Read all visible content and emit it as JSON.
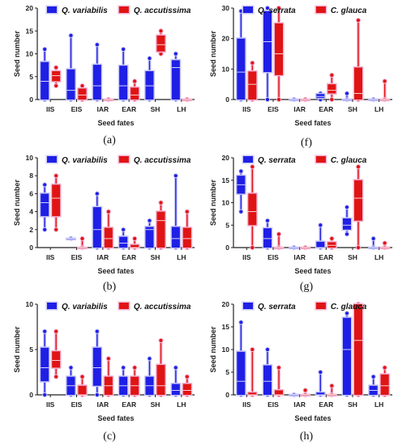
{
  "chart_data": [
    {
      "id": "a",
      "panel_label": "(a)",
      "type": "box",
      "ylabel": "Seed number",
      "xlabel": "Seed fates",
      "ylim": [
        0,
        20
      ],
      "yticks": [
        0,
        5,
        10,
        15,
        20
      ],
      "categories": [
        "IIS",
        "EIS",
        "IAR",
        "EAR",
        "SH",
        "LH"
      ],
      "series": [
        {
          "name": "Q. variabilis",
          "color": "#1f1fe6",
          "boxes": [
            {
              "min": 0,
              "q1": 0,
              "med": 4,
              "q3": 8.2,
              "max": 11
            },
            {
              "min": 0,
              "q1": 0,
              "med": 2,
              "q3": 6.6,
              "max": 14
            },
            {
              "min": 0,
              "q1": 0,
              "med": 3,
              "q3": 7.6,
              "max": 12
            },
            {
              "min": 0,
              "q1": 0,
              "med": 3,
              "q3": 7.4,
              "max": 11
            },
            {
              "min": 0,
              "q1": 0,
              "med": 3,
              "q3": 6.2,
              "max": 9
            },
            {
              "min": 0,
              "q1": 0,
              "med": 7,
              "q3": 8.6,
              "max": 10
            }
          ]
        },
        {
          "name": "Q. accutissima",
          "color": "#e01414",
          "boxes": [
            {
              "min": 3,
              "q1": 4,
              "med": 5.2,
              "q3": 6.2,
              "max": 7
            },
            {
              "min": 0,
              "q1": 0,
              "med": 1,
              "q3": 2.4,
              "max": 3
            },
            {
              "min": 0,
              "q1": 0,
              "med": 0,
              "q3": 0,
              "max": 0
            },
            {
              "min": 0,
              "q1": 0,
              "med": 1,
              "q3": 2.6,
              "max": 4
            },
            {
              "min": 10,
              "q1": 10.5,
              "med": 12,
              "q3": 14,
              "max": 15
            },
            {
              "min": 0,
              "q1": 0,
              "med": 0,
              "q3": 0,
              "max": 0
            }
          ]
        }
      ]
    },
    {
      "id": "f",
      "panel_label": "(f)",
      "type": "box",
      "ylabel": "Seed number",
      "xlabel": "Seed fates",
      "ylim": [
        0,
        30
      ],
      "yticks": [
        0,
        10,
        20,
        30
      ],
      "categories": [
        "IIS",
        "EIS",
        "IAR",
        "EAR",
        "SH",
        "LH"
      ],
      "series": [
        {
          "name": "Q. serrata",
          "color": "#1f1fe6",
          "boxes": [
            {
              "min": 0,
              "q1": 0,
              "med": 9,
              "q3": 20,
              "max": 29
            },
            {
              "min": 0,
              "q1": 9,
              "med": 19,
              "q3": 29,
              "max": 30
            },
            {
              "min": 0,
              "q1": 0,
              "med": 0,
              "q3": 0,
              "max": 0
            },
            {
              "min": 0,
              "q1": 0.5,
              "med": 1,
              "q3": 1.8,
              "max": 2
            },
            {
              "min": 0,
              "q1": 0,
              "med": 0,
              "q3": 0,
              "max": 2
            },
            {
              "min": 0,
              "q1": 0,
              "med": 0,
              "q3": 0,
              "max": 0
            }
          ]
        },
        {
          "name": "C. glauca",
          "color": "#e01414",
          "boxes": [
            {
              "min": 0,
              "q1": 0,
              "med": 5,
              "q3": 9.2,
              "max": 12
            },
            {
              "min": 0,
              "q1": 8,
              "med": 15,
              "q3": 25,
              "max": 30
            },
            {
              "min": 0,
              "q1": 0,
              "med": 0,
              "q3": 0,
              "max": 0
            },
            {
              "min": 0,
              "q1": 2,
              "med": 3,
              "q3": 5,
              "max": 8
            },
            {
              "min": 0,
              "q1": 0,
              "med": 2,
              "q3": 10.5,
              "max": 26
            },
            {
              "min": 0,
              "q1": 0,
              "med": 0,
              "q3": 0,
              "max": 6
            }
          ]
        }
      ]
    },
    {
      "id": "b",
      "panel_label": "(b)",
      "type": "box",
      "ylabel": "Seed number",
      "xlabel": "Seed fates",
      "ylim": [
        0,
        10
      ],
      "yticks": [
        0,
        2,
        4,
        6,
        8,
        10
      ],
      "categories": [
        "IIS",
        "EIS",
        "IAR",
        "EAR",
        "SH",
        "LH"
      ],
      "series": [
        {
          "name": "Q. variabilis",
          "color": "#1f1fe6",
          "boxes": [
            {
              "min": 2,
              "q1": 3.5,
              "med": 5,
              "q3": 6,
              "max": 7
            },
            {
              "min": 1,
              "q1": 1,
              "med": 1,
              "q3": 1,
              "max": 1
            },
            {
              "min": 0,
              "q1": 0,
              "med": 2,
              "q3": 4.5,
              "max": 6
            },
            {
              "min": 0,
              "q1": 0,
              "med": 0.5,
              "q3": 1.2,
              "max": 2
            },
            {
              "min": 0,
              "q1": 0,
              "med": 2,
              "q3": 2.3,
              "max": 3
            },
            {
              "min": 0,
              "q1": 0,
              "med": 1,
              "q3": 2.3,
              "max": 8
            }
          ]
        },
        {
          "name": "Q. accutissima",
          "color": "#e01414",
          "boxes": [
            {
              "min": 2,
              "q1": 3.5,
              "med": 5.5,
              "q3": 7,
              "max": 8
            },
            {
              "min": 0,
              "q1": 0,
              "med": 0,
              "q3": 0,
              "max": 1
            },
            {
              "min": 0,
              "q1": 0,
              "med": 1,
              "q3": 2.2,
              "max": 4
            },
            {
              "min": 0,
              "q1": 0,
              "med": 0,
              "q3": 0.3,
              "max": 1
            },
            {
              "min": 0,
              "q1": 0,
              "med": 3,
              "q3": 4,
              "max": 5
            },
            {
              "min": 0,
              "q1": 0,
              "med": 1,
              "q3": 2.2,
              "max": 4
            }
          ]
        }
      ]
    },
    {
      "id": "g",
      "panel_label": "(g)",
      "type": "box",
      "ylabel": "Seed number",
      "xlabel": "Seed fates",
      "ylim": [
        0,
        20
      ],
      "yticks": [
        0,
        5,
        10,
        15,
        20
      ],
      "categories": [
        "IIS",
        "EIS",
        "IAR",
        "EAR",
        "SH",
        "LH"
      ],
      "series": [
        {
          "name": "Q. serrata",
          "color": "#1f1fe6",
          "boxes": [
            {
              "min": 8,
              "q1": 12,
              "med": 14,
              "q3": 16,
              "max": 17
            },
            {
              "min": 0,
              "q1": 0,
              "med": 2,
              "q3": 4.3,
              "max": 6
            },
            {
              "min": 0,
              "q1": 0,
              "med": 0,
              "q3": 0,
              "max": 0
            },
            {
              "min": 0,
              "q1": 0,
              "med": 0,
              "q3": 1.3,
              "max": 5
            },
            {
              "min": 3,
              "q1": 4,
              "med": 5,
              "q3": 6.5,
              "max": 9
            },
            {
              "min": 0,
              "q1": 0,
              "med": 0,
              "q3": 0,
              "max": 2
            }
          ]
        },
        {
          "name": "C. glauca",
          "color": "#e01414",
          "boxes": [
            {
              "min": 0,
              "q1": 5,
              "med": 8,
              "q3": 12,
              "max": 18
            },
            {
              "min": 0,
              "q1": 0,
              "med": 0,
              "q3": 0,
              "max": 3
            },
            {
              "min": 0,
              "q1": 0,
              "med": 0,
              "q3": 0,
              "max": 0
            },
            {
              "min": 0,
              "q1": 0,
              "med": 0.5,
              "q3": 1.2,
              "max": 2
            },
            {
              "min": 0,
              "q1": 6,
              "med": 11,
              "q3": 15,
              "max": 18
            },
            {
              "min": 0,
              "q1": 0,
              "med": 0,
              "q3": 0,
              "max": 1
            }
          ]
        }
      ]
    },
    {
      "id": "c",
      "panel_label": "(c)",
      "type": "box",
      "ylabel": "Seed number",
      "xlabel": "Seed fates",
      "ylim": [
        0,
        10
      ],
      "yticks": [
        0,
        5,
        10
      ],
      "categories": [
        "IIS",
        "EIS",
        "IAR",
        "EAR",
        "SH",
        "LH"
      ],
      "series": [
        {
          "name": "Q. variabilis",
          "color": "#1f1fe6",
          "boxes": [
            {
              "min": 0,
              "q1": 1.5,
              "med": 3,
              "q3": 5.2,
              "max": 7
            },
            {
              "min": 0,
              "q1": 0,
              "med": 1,
              "q3": 2,
              "max": 3
            },
            {
              "min": 0,
              "q1": 1,
              "med": 3,
              "q3": 5.2,
              "max": 7
            },
            {
              "min": 0,
              "q1": 0,
              "med": 1,
              "q3": 2,
              "max": 3
            },
            {
              "min": 0,
              "q1": 0,
              "med": 1,
              "q3": 2,
              "max": 4
            },
            {
              "min": 0,
              "q1": 0,
              "med": 0.5,
              "q3": 1.2,
              "max": 3
            }
          ]
        },
        {
          "name": "Q. accutissima",
          "color": "#e01414",
          "boxes": [
            {
              "min": 2,
              "q1": 3,
              "med": 3.8,
              "q3": 4.8,
              "max": 7
            },
            {
              "min": 0,
              "q1": 0,
              "med": 0,
              "q3": 1,
              "max": 2
            },
            {
              "min": 0,
              "q1": 0,
              "med": 1,
              "q3": 2,
              "max": 4
            },
            {
              "min": 0,
              "q1": 0,
              "med": 1,
              "q3": 2,
              "max": 3
            },
            {
              "min": 0,
              "q1": 0,
              "med": 1,
              "q3": 3.3,
              "max": 6
            },
            {
              "min": 0,
              "q1": 0,
              "med": 0.5,
              "q3": 1.2,
              "max": 2
            }
          ]
        }
      ]
    },
    {
      "id": "h",
      "panel_label": "(h)",
      "type": "box",
      "ylabel": "Seed number",
      "xlabel": "Seed fates",
      "ylim": [
        0,
        20
      ],
      "yticks": [
        0,
        5,
        10,
        15,
        20
      ],
      "categories": [
        "IIS",
        "EIS",
        "IAR",
        "EAR",
        "SH",
        "LH"
      ],
      "series": [
        {
          "name": "Q. serrata",
          "color": "#1f1fe6",
          "boxes": [
            {
              "min": 0,
              "q1": 0,
              "med": 3,
              "q3": 9.5,
              "max": 16
            },
            {
              "min": 0,
              "q1": 0,
              "med": 3,
              "q3": 6.5,
              "max": 10
            },
            {
              "min": 0,
              "q1": 0,
              "med": 0,
              "q3": 0,
              "max": 0
            },
            {
              "min": 0,
              "q1": 0,
              "med": 0,
              "q3": 0.5,
              "max": 5
            },
            {
              "min": 0,
              "q1": 0,
              "med": 10,
              "q3": 17,
              "max": 18
            },
            {
              "min": 0,
              "q1": 0,
              "med": 1,
              "q3": 2,
              "max": 4
            }
          ]
        },
        {
          "name": "C. glauca",
          "color": "#e01414",
          "boxes": [
            {
              "min": 0,
              "q1": 0,
              "med": 0,
              "q3": 0.5,
              "max": 10
            },
            {
              "min": 0,
              "q1": 0,
              "med": 0,
              "q3": 1,
              "max": 6
            },
            {
              "min": 0,
              "q1": 0,
              "med": 0,
              "q3": 0,
              "max": 1
            },
            {
              "min": 0,
              "q1": 0,
              "med": 0,
              "q3": 0,
              "max": 2
            },
            {
              "min": 0,
              "q1": 0,
              "med": 12,
              "q3": 20,
              "max": 20
            },
            {
              "min": 0,
              "q1": 0,
              "med": 2,
              "q3": 4.5,
              "max": 6
            }
          ]
        }
      ]
    }
  ]
}
